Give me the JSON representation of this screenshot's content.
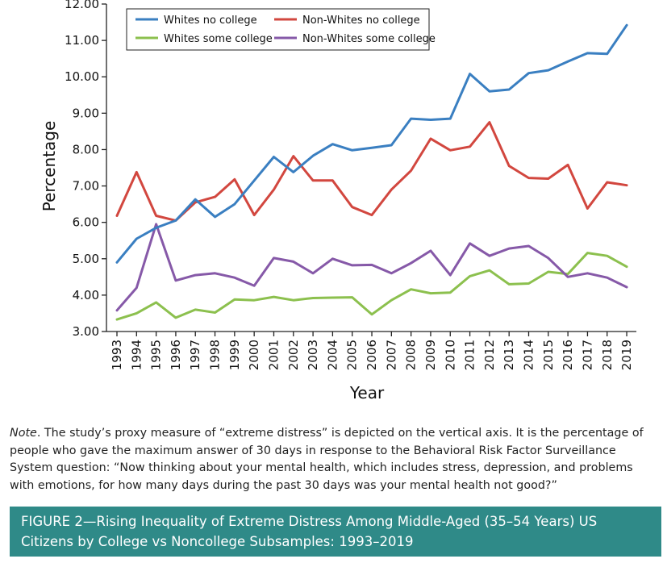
{
  "chart_data": {
    "type": "line",
    "xlabel": "Year",
    "ylabel": "Percentage",
    "ylim": [
      3.0,
      12.0
    ],
    "yticks": [
      "3.00",
      "4.00",
      "5.00",
      "6.00",
      "7.00",
      "8.00",
      "9.00",
      "10.00",
      "11.00",
      "12.00"
    ],
    "x": [
      "1993",
      "1994",
      "1995",
      "1996",
      "1997",
      "1998",
      "1999",
      "2000",
      "2001",
      "2002",
      "2003",
      "2004",
      "2005",
      "2006",
      "2007",
      "2008",
      "2009",
      "2010",
      "2011",
      "2012",
      "2013",
      "2014",
      "2015",
      "2016",
      "2017",
      "2018",
      "2019"
    ],
    "legend_position": "top-left",
    "grid": false,
    "series": [
      {
        "name": "Whites no college",
        "color": "#3a7fc1",
        "values": [
          4.9,
          5.55,
          5.85,
          6.05,
          6.63,
          6.15,
          6.5,
          7.15,
          7.8,
          7.38,
          7.83,
          8.15,
          7.98,
          8.05,
          8.12,
          8.85,
          8.82,
          8.85,
          10.08,
          9.6,
          9.65,
          10.1,
          10.18,
          10.42,
          10.65,
          10.63,
          11.42
        ]
      },
      {
        "name": "Non-Whites no college",
        "color": "#d2473f",
        "values": [
          6.18,
          7.38,
          6.18,
          6.05,
          6.55,
          6.7,
          7.18,
          6.2,
          6.9,
          7.82,
          7.15,
          7.15,
          6.42,
          6.2,
          6.9,
          7.42,
          8.3,
          7.98,
          8.08,
          8.75,
          7.55,
          7.22,
          7.2,
          7.58,
          6.38,
          7.1,
          7.02
        ]
      },
      {
        "name": "Whites some college",
        "color": "#8cc04e",
        "values": [
          3.33,
          3.5,
          3.8,
          3.38,
          3.6,
          3.52,
          3.88,
          3.86,
          3.95,
          3.86,
          3.92,
          3.93,
          3.94,
          3.47,
          3.86,
          4.16,
          4.05,
          4.07,
          4.52,
          4.68,
          4.3,
          4.32,
          4.64,
          4.58,
          5.16,
          5.08,
          4.78
        ]
      },
      {
        "name": "Non-Whites some college",
        "color": "#8659a8",
        "values": [
          3.58,
          4.2,
          5.95,
          4.4,
          4.55,
          4.6,
          4.48,
          4.26,
          5.02,
          4.92,
          4.6,
          5.0,
          4.82,
          4.83,
          4.6,
          4.88,
          5.22,
          4.55,
          5.42,
          5.08,
          5.28,
          5.35,
          5.02,
          4.5,
          4.6,
          4.48,
          4.22
        ]
      }
    ]
  },
  "note": {
    "label": "Note",
    "text": ". The study’s proxy measure of “extreme distress” is depicted on the vertical axis. It is the percentage of people who gave the maximum answer of 30 days in response to the Behavioral Risk Factor Surveillance System question: “Now thinking about your mental health, which includes stress, depression, and problems with emotions, for how many days during the past 30 days was your mental health not good?”"
  },
  "caption": {
    "text": "FIGURE 2—Rising Inequality of Extreme Distress Among Middle-Aged (35–54 Years) US Citizens by College vs Noncollege Subsamples: 1993–2019"
  }
}
